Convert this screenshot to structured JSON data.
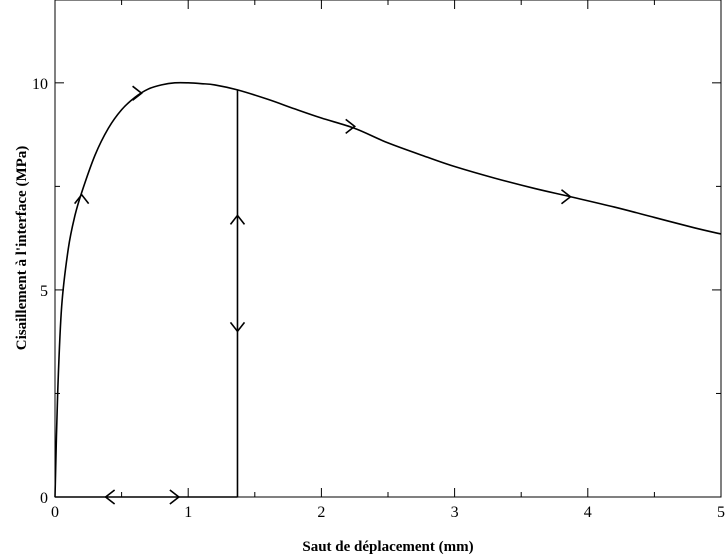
{
  "chart_data": {
    "type": "line",
    "title": "",
    "xlabel": "Saut de déplacement (mm)",
    "ylabel": "Cisaillement à l'interface (MPa)",
    "xlim": [
      0,
      5
    ],
    "ylim": [
      0,
      12
    ],
    "grid": false,
    "legend": "none",
    "x_ticks": [
      0,
      1,
      2,
      3,
      4,
      5
    ],
    "x_tick_labels": [
      "0",
      "1",
      "2",
      "3",
      "4",
      "5"
    ],
    "y_ticks": [
      0,
      5,
      10
    ],
    "y_tick_labels": [
      "0",
      "5",
      "10"
    ],
    "series": [
      {
        "x": [
          0.0,
          0.02,
          0.05,
          0.1,
          0.15,
          0.2,
          0.3,
          0.4,
          0.5,
          0.6,
          0.7,
          0.8,
          0.9,
          1.0,
          1.1,
          1.2,
          1.37,
          1.6,
          1.8,
          2.0,
          2.25,
          2.5,
          2.8,
          3.0,
          3.3,
          3.6,
          3.87,
          4.2,
          4.5,
          4.8,
          5.0
        ],
        "y": [
          0.0,
          2.5,
          4.6,
          6.0,
          6.8,
          7.35,
          8.25,
          8.9,
          9.35,
          9.65,
          9.85,
          9.95,
          10.0,
          10.0,
          9.98,
          9.95,
          9.83,
          9.6,
          9.37,
          9.15,
          8.9,
          8.55,
          8.2,
          7.98,
          7.7,
          7.45,
          7.25,
          7.0,
          6.75,
          6.5,
          6.35
        ]
      },
      {
        "x": [
          1.37,
          1.37
        ],
        "y": [
          0,
          9.83
        ]
      },
      {
        "x": [
          0,
          1.37
        ],
        "y": [
          0,
          0
        ]
      }
    ],
    "arrows": [
      {
        "x": 0.2,
        "y": 7.3,
        "direction": "up"
      },
      {
        "x": 0.65,
        "y": 9.75,
        "direction": "right"
      },
      {
        "x": 2.25,
        "y": 8.95,
        "direction": "right"
      },
      {
        "x": 3.87,
        "y": 7.25,
        "direction": "right"
      },
      {
        "x": 1.37,
        "y": 6.8,
        "direction": "up"
      },
      {
        "x": 1.37,
        "y": 4.0,
        "direction": "down"
      },
      {
        "x": 0.38,
        "y": 0,
        "direction": "left"
      },
      {
        "x": 0.93,
        "y": 0,
        "direction": "right"
      }
    ]
  }
}
